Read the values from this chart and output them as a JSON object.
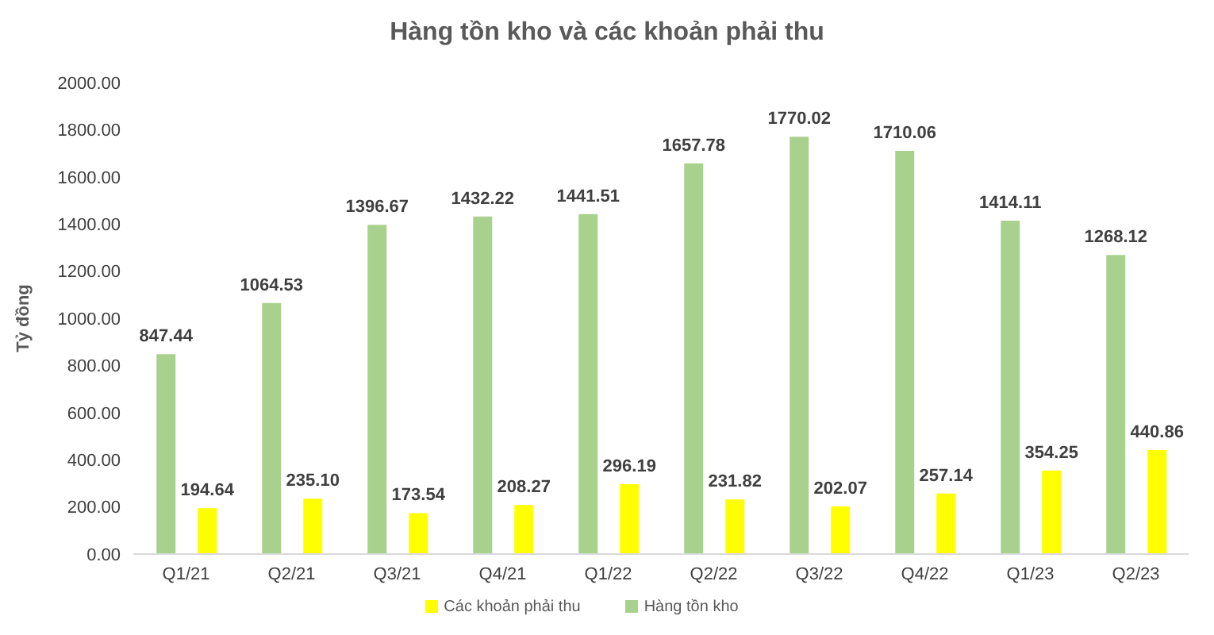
{
  "chart_data": {
    "type": "bar",
    "title": "Hàng tồn kho và các khoản phải thu",
    "ylabel": "Tỷ đồng",
    "categories": [
      "Q1/21",
      "Q2/21",
      "Q3/21",
      "Q4/21",
      "Q1/22",
      "Q2/22",
      "Q3/22",
      "Q4/22",
      "Q1/23",
      "Q2/23"
    ],
    "series": [
      {
        "name": "Hàng tồn kho",
        "color": "#a9d18e",
        "values": [
          847.44,
          1064.53,
          1396.67,
          1432.22,
          1441.51,
          1657.78,
          1770.02,
          1710.06,
          1414.11,
          1268.12
        ],
        "value_labels": [
          "847.44",
          "1064.53",
          "1396.67",
          "1432.22",
          "1441.51",
          "1657.78",
          "1770.02",
          "1710.06",
          "1414.11",
          "1268.12"
        ]
      },
      {
        "name": "Các khoản phải thu",
        "color": "#ffff00",
        "values": [
          194.64,
          235.1,
          173.54,
          208.27,
          296.19,
          231.82,
          202.07,
          257.14,
          354.25,
          440.86
        ],
        "value_labels": [
          "194.64",
          "235.10",
          "173.54",
          "208.27",
          "296.19",
          "231.82",
          "202.07",
          "257.14",
          "354.25",
          "440.86"
        ]
      }
    ],
    "ylim": [
      0,
      2000
    ],
    "yticks": [
      {
        "value": 0,
        "label": "0.00"
      },
      {
        "value": 200,
        "label": "200.00"
      },
      {
        "value": 400,
        "label": "400.00"
      },
      {
        "value": 600,
        "label": "600.00"
      },
      {
        "value": 800,
        "label": "800.00"
      },
      {
        "value": 1000,
        "label": "1000.00"
      },
      {
        "value": 1200,
        "label": "1200.00"
      },
      {
        "value": 1400,
        "label": "1400.00"
      },
      {
        "value": 1600,
        "label": "1600.00"
      },
      {
        "value": 1800,
        "label": "1800.00"
      },
      {
        "value": 2000,
        "label": "2000.00"
      }
    ],
    "grid": false,
    "legend": "bottom"
  }
}
